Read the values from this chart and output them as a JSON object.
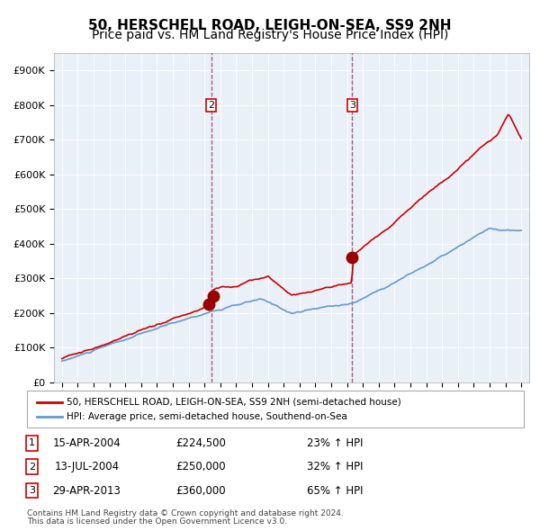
{
  "title": "50, HERSCHELL ROAD, LEIGH-ON-SEA, SS9 2NH",
  "subtitle": "Price paid vs. HM Land Registry's House Price Index (HPI)",
  "red_line_label": "50, HERSCHELL ROAD, LEIGH-ON-SEA, SS9 2NH (semi-detached house)",
  "blue_line_label": "HPI: Average price, semi-detached house, Southend-on-Sea",
  "sales": [
    {
      "num": 1,
      "date": "15-APR-2004",
      "price": 224500,
      "pct": "23%",
      "dir": "↑"
    },
    {
      "num": 2,
      "date": "13-JUL-2004",
      "price": 250000,
      "pct": "32%",
      "dir": "↑"
    },
    {
      "num": 3,
      "date": "29-APR-2013",
      "price": 360000,
      "pct": "65%",
      "dir": "↑"
    }
  ],
  "sale_dates_decimal": [
    2004.29,
    2004.54,
    2013.33
  ],
  "footnote1": "Contains HM Land Registry data © Crown copyright and database right 2024.",
  "footnote2": "This data is licensed under the Open Government Licence v3.0.",
  "ylim": [
    0,
    950000
  ],
  "yticks": [
    0,
    100000,
    200000,
    300000,
    400000,
    500000,
    600000,
    700000,
    800000,
    900000
  ],
  "ytick_labels": [
    "£0",
    "£100K",
    "£200K",
    "£300K",
    "£400K",
    "£500K",
    "£600K",
    "£700K",
    "£800K",
    "£900K"
  ],
  "red_color": "#cc0000",
  "blue_color": "#6699cc",
  "bg_color": "#dce9f5",
  "plot_bg": "#eaf0f8",
  "vline_color_red": "#cc0000",
  "vline_color_blue": "#6699cc",
  "marker_color": "#990000",
  "box_color": "#cc0000",
  "title_fontsize": 11,
  "subtitle_fontsize": 10
}
